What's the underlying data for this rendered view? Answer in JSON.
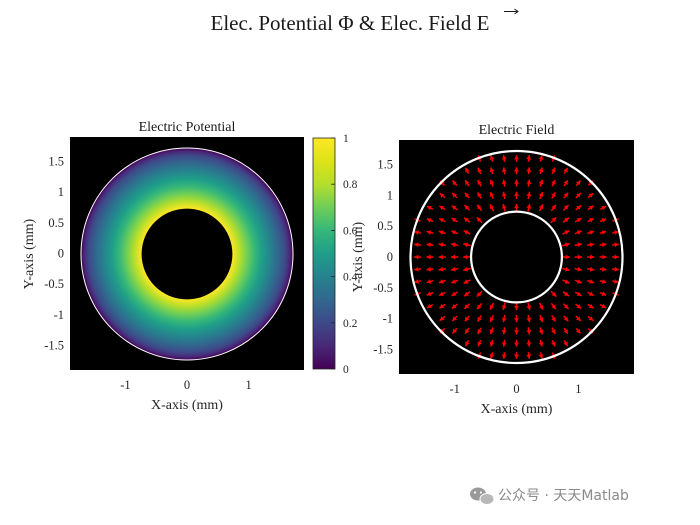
{
  "figure": {
    "suptitle": "Elec. Potential Φ & Elec. Field E",
    "suptitle_arrow_symbol": "E",
    "watermark": "公众号 · 天天Matlab"
  },
  "chart_data": [
    {
      "type": "heatmap",
      "title": "Electric Potential",
      "xlabel": "X-axis (mm)",
      "ylabel": "Y-axis (mm)",
      "xlim": [
        -1.9,
        1.9
      ],
      "ylim": [
        -1.9,
        1.9
      ],
      "xticks": [
        -1,
        0,
        1
      ],
      "yticks": [
        1.5,
        1,
        0.5,
        0,
        -0.5,
        -1,
        -1.5
      ],
      "xtick_labels": [
        "-1",
        "0",
        "1"
      ],
      "ytick_labels": [
        "1.5",
        "1",
        "0.5",
        "0",
        "-0.5",
        "-1",
        "-1.5"
      ],
      "inner_radius": 0.75,
      "outer_radius": 1.75,
      "potential_at_inner": 1,
      "potential_at_outer": 0,
      "background_color": "#000000",
      "colormap": "viridis",
      "colorbar": {
        "min": 0,
        "max": 1,
        "ticks": [
          1,
          0.8,
          0.6,
          0.4,
          0.2,
          0
        ],
        "tick_labels": [
          "1",
          "0.8",
          "0.6",
          "0.4",
          "0.2",
          "0"
        ]
      }
    },
    {
      "type": "quiver",
      "title": "Electric Field",
      "xlabel": "X-axis (mm)",
      "ylabel": "Y-axis (mm)",
      "xlim": [
        -1.9,
        1.9
      ],
      "ylim": [
        -1.9,
        1.9
      ],
      "xticks": [
        -1,
        0,
        1
      ],
      "yticks": [
        1.5,
        1,
        0.5,
        0,
        -0.5,
        -1,
        -1.5
      ],
      "xtick_labels": [
        "-1",
        "0",
        "1"
      ],
      "ytick_labels": [
        "1.5",
        "1",
        "0.5",
        "0",
        "-0.5",
        "-1",
        "-1.5"
      ],
      "inner_radius": 0.75,
      "outer_radius": 1.75,
      "grid_spacing": 0.2,
      "field_direction": "radial-outward",
      "arrow_color": "#ff0000",
      "boundary_color": "#ffffff",
      "background_color": "#000000"
    }
  ]
}
